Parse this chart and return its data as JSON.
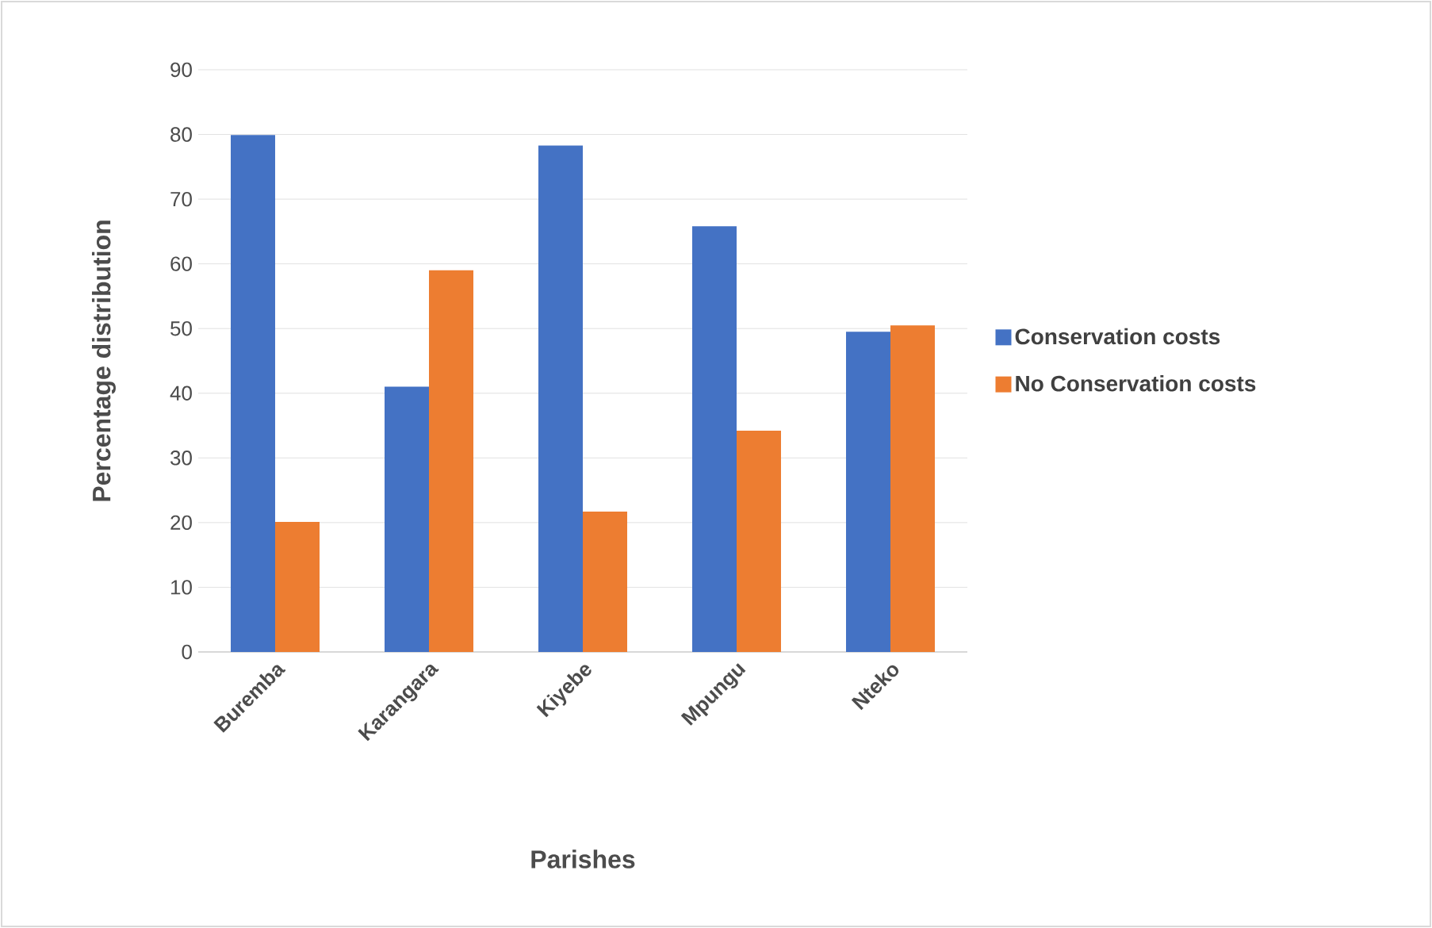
{
  "chart_data": {
    "type": "bar",
    "xlabel": "Parishes",
    "ylabel": "Percentage distribution",
    "categories": [
      "Buremba",
      "Karangara",
      "Kiyebe",
      "Mpungu",
      "Nteko"
    ],
    "series": [
      {
        "name": "Conservation costs",
        "color": "#4472c4",
        "values": [
          79.9,
          41.0,
          78.3,
          65.8,
          49.5
        ]
      },
      {
        "name": "No Conservation costs",
        "color": "#ed7d31",
        "values": [
          20.1,
          59.0,
          21.7,
          34.2,
          50.5
        ]
      }
    ],
    "ylim": [
      0,
      90
    ],
    "yticks": [
      0,
      10,
      20,
      30,
      40,
      50,
      60,
      70,
      80,
      90
    ],
    "grid": "y",
    "legend": "right"
  }
}
